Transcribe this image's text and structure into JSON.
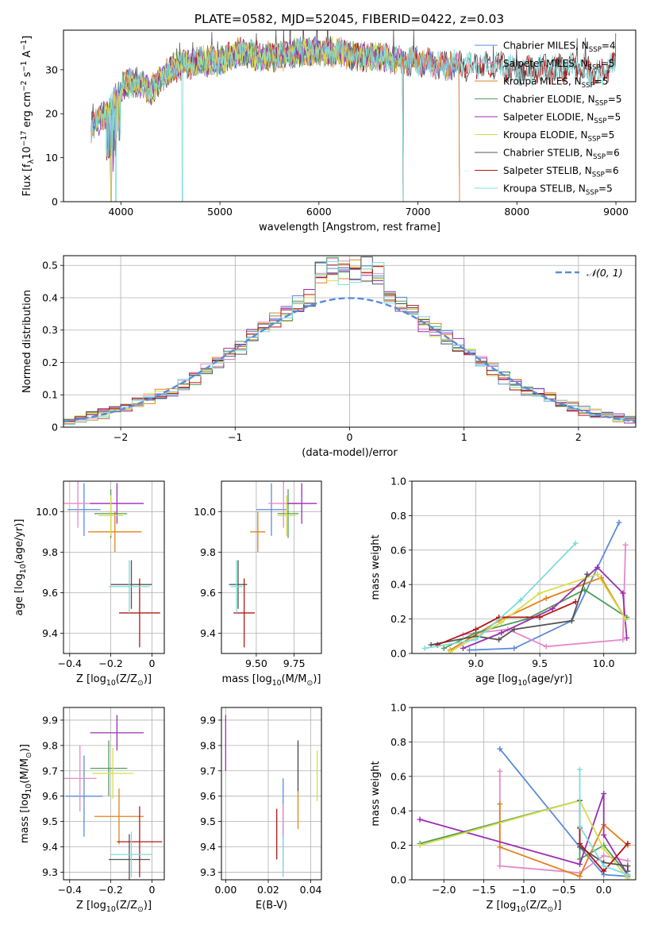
{
  "figure": {
    "title": "PLATE=0582, MJD=52045, FIBERID=0422, z=0.03"
  },
  "colors": [
    "#5b8bd9",
    "#e58ac9",
    "#e2821c",
    "#4f9d57",
    "#9b2fb0",
    "#d6dd4a",
    "#555555",
    "#b01818",
    "#7fdcdc"
  ],
  "chart_data": [
    {
      "id": "spectrum",
      "type": "line",
      "xlabel": "wavelength [Angstrom, rest frame]",
      "ylabel": "Flux [f_λ 10^-17 erg cm^-2 s^-1 A^-1]",
      "xlim": [
        3420,
        9200
      ],
      "ylim": [
        0,
        39
      ],
      "xticks": [
        4000,
        5000,
        6000,
        7000,
        8000,
        9000
      ],
      "yticks": [
        0,
        10,
        20,
        30
      ],
      "legend_position": "top-right",
      "series": [
        {
          "name": "Chabrier MILES, N_SSP=4",
          "x_range": [
            3700,
            7420
          ]
        },
        {
          "name": "Salpeter MILES, N_SSP=5",
          "x_range": [
            3700,
            7420
          ]
        },
        {
          "name": "Kroupa MILES, N_SSP=5",
          "x_range": [
            3700,
            7420
          ]
        },
        {
          "name": "Chabrier ELODIE, N_SSP=5",
          "x_range": [
            3700,
            6800
          ]
        },
        {
          "name": "Salpeter ELODIE, N_SSP=5",
          "x_range": [
            3700,
            6800
          ]
        },
        {
          "name": "Kroupa ELODIE, N_SSP=5",
          "x_range": [
            3700,
            6800
          ]
        },
        {
          "name": "Chabrier STELIB, N_SSP=6",
          "x_range": [
            3700,
            9000
          ]
        },
        {
          "name": "Salpeter STELIB, N_SSP=6",
          "x_range": [
            3700,
            9000
          ]
        },
        {
          "name": "Kroupa STELIB, N_SSP=5",
          "x_range": [
            3700,
            9000
          ]
        }
      ],
      "continuum": {
        "x": [
          3700,
          3800,
          3900,
          4000,
          4100,
          4200,
          4300,
          4400,
          4500,
          4600,
          4700,
          4800,
          4900,
          5000,
          5200,
          5400,
          5600,
          5800,
          6000,
          6200,
          6400,
          6600,
          6800,
          7000,
          7200,
          7400,
          7600,
          7800,
          8000,
          8200,
          8400,
          8600,
          8800,
          9000
        ],
        "y": [
          17,
          19,
          21,
          26,
          27,
          27,
          25,
          28,
          30,
          31,
          31,
          32,
          32,
          32,
          34,
          33,
          33,
          34,
          34,
          34,
          33,
          33,
          32,
          32,
          31,
          31,
          31,
          31,
          30,
          30,
          30,
          31,
          29,
          31
        ]
      },
      "dropouts": [
        {
          "x": 3900,
          "series": [
            3,
            4,
            5
          ]
        },
        {
          "x": 3950,
          "series": [
            8
          ]
        },
        {
          "x": 4620,
          "series": [
            8
          ]
        },
        {
          "x": 6810,
          "series": [
            3,
            4,
            5
          ]
        },
        {
          "x": 6850,
          "series": [
            6,
            7,
            8
          ]
        },
        {
          "x": 7420,
          "series": [
            0,
            1,
            2
          ]
        }
      ]
    },
    {
      "id": "residuals",
      "type": "histogram",
      "xlabel": "(data-model)/error",
      "ylabel": "Normed distribution",
      "xlim": [
        -2.5,
        2.5
      ],
      "ylim": [
        0,
        0.53
      ],
      "xticks": [
        -2,
        -1,
        0,
        1,
        2
      ],
      "yticks": [
        0.0,
        0.1,
        0.2,
        0.3,
        0.4,
        0.5
      ],
      "grid": true,
      "legend_position": "top-right",
      "reference": {
        "name": "𝒩(0, 1)",
        "mean": 0,
        "sigma": 1
      },
      "bin_width": 0.1
    },
    {
      "id": "age_vs_Z",
      "type": "errorbar",
      "xlabel": "Z [log10(Z/Z⊙)]",
      "ylabel": "age [log10(age/yr)]",
      "xlim": [
        -0.43,
        0.06
      ],
      "ylim": [
        9.3,
        10.15
      ],
      "xticks": [
        -0.4,
        -0.2,
        0.0
      ],
      "yticks": [
        9.4,
        9.6,
        9.8,
        10.0
      ],
      "grid": true,
      "points": [
        {
          "x": -0.33,
          "xerr": 0.08,
          "y": 10.01,
          "yerr": 0.13
        },
        {
          "x": -0.36,
          "xerr": 0.07,
          "y": 10.04,
          "yerr": 0.12
        },
        {
          "x": -0.18,
          "xerr": 0.13,
          "y": 9.9,
          "yerr": 0.1
        },
        {
          "x": -0.2,
          "xerr": 0.08,
          "y": 9.99,
          "yerr": 0.12
        },
        {
          "x": -0.17,
          "xerr": 0.13,
          "y": 10.04,
          "yerr": 0.1
        },
        {
          "x": -0.2,
          "xerr": 0.06,
          "y": 9.98,
          "yerr": 0.1
        },
        {
          "x": -0.1,
          "xerr": 0.1,
          "y": 9.64,
          "yerr": 0.12
        },
        {
          "x": -0.06,
          "xerr": 0.1,
          "y": 9.5,
          "yerr": 0.17
        },
        {
          "x": -0.11,
          "xerr": 0.1,
          "y": 9.63,
          "yerr": 0.13
        }
      ]
    },
    {
      "id": "age_vs_mass",
      "type": "errorbar",
      "xlabel": "mass [log10(M/M⊙)]",
      "ylabel": "",
      "xlim": [
        9.27,
        9.93
      ],
      "ylim": [
        9.3,
        10.15
      ],
      "xticks": [
        9.5,
        9.75
      ],
      "yticks": [
        9.4,
        9.6,
        9.8,
        10.0
      ],
      "grid": true,
      "points": [
        {
          "x": 9.6,
          "xerr": 0.1,
          "y": 10.01,
          "yerr": 0.13
        },
        {
          "x": 9.68,
          "xerr": 0.1,
          "y": 10.04,
          "yerr": 0.12
        },
        {
          "x": 9.51,
          "xerr": 0.05,
          "y": 9.9,
          "yerr": 0.1
        },
        {
          "x": 9.71,
          "xerr": 0.07,
          "y": 9.99,
          "yerr": 0.12
        },
        {
          "x": 9.8,
          "xerr": 0.1,
          "y": 10.04,
          "yerr": 0.1
        },
        {
          "x": 9.7,
          "xerr": 0.06,
          "y": 9.98,
          "yerr": 0.1
        },
        {
          "x": 9.38,
          "xerr": 0.06,
          "y": 9.64,
          "yerr": 0.12
        },
        {
          "x": 9.42,
          "xerr": 0.07,
          "y": 9.5,
          "yerr": 0.17
        },
        {
          "x": 9.37,
          "xerr": 0.04,
          "y": 9.63,
          "yerr": 0.13
        }
      ]
    },
    {
      "id": "weight_vs_age",
      "type": "line",
      "xlabel": "age [log10(age/yr)]",
      "ylabel": "mass weight",
      "xlim": [
        8.5,
        10.25
      ],
      "ylim": [
        0,
        1.0
      ],
      "xticks": [
        9.0,
        9.5,
        10.0
      ],
      "yticks": [
        0.0,
        0.2,
        0.4,
        0.6,
        0.8,
        1.0
      ],
      "grid": true,
      "series": [
        {
          "x": [
            8.95,
            9.3,
            9.75,
            10.12
          ],
          "y": [
            0.02,
            0.03,
            0.19,
            0.76
          ]
        },
        {
          "x": [
            8.9,
            9.25,
            9.55,
            10.15,
            10.17
          ],
          "y": [
            0.11,
            0.14,
            0.04,
            0.08,
            0.63
          ]
        },
        {
          "x": [
            8.8,
            9.18,
            9.55,
            9.98,
            10.17
          ],
          "y": [
            0.02,
            0.19,
            0.32,
            0.44,
            0.2
          ]
        },
        {
          "x": [
            8.75,
            9.0,
            9.4,
            9.85,
            10.18
          ],
          "y": [
            0.03,
            0.12,
            0.2,
            0.37,
            0.21
          ]
        },
        {
          "x": [
            8.9,
            9.2,
            9.6,
            9.95,
            10.15,
            10.18
          ],
          "y": [
            0.03,
            0.12,
            0.26,
            0.5,
            0.35,
            0.09
          ]
        },
        {
          "x": [
            8.8,
            9.2,
            9.5,
            9.95,
            10.17
          ],
          "y": [
            0.01,
            0.18,
            0.35,
            0.46,
            0.2
          ]
        },
        {
          "x": [
            8.65,
            9.0,
            9.18,
            9.3,
            9.75,
            9.87
          ],
          "y": [
            0.05,
            0.1,
            0.08,
            0.14,
            0.19,
            0.46
          ]
        },
        {
          "x": [
            8.7,
            9.0,
            9.18,
            9.5,
            9.78
          ],
          "y": [
            0.05,
            0.14,
            0.21,
            0.21,
            0.3
          ]
        },
        {
          "x": [
            8.6,
            9.0,
            9.35,
            9.78
          ],
          "y": [
            0.03,
            0.08,
            0.31,
            0.64
          ]
        }
      ]
    },
    {
      "id": "mass_vs_Z",
      "type": "errorbar",
      "xlabel": "Z [log10(Z/Z⊙)]",
      "ylabel": "mass [log10(M/M⊙)]",
      "xlim": [
        -0.43,
        0.06
      ],
      "ylim": [
        9.27,
        9.95
      ],
      "xticks": [
        -0.4,
        -0.2,
        0.0
      ],
      "yticks": [
        9.3,
        9.4,
        9.5,
        9.6,
        9.7,
        9.8,
        9.9
      ],
      "grid": true,
      "points": [
        {
          "x": -0.33,
          "xerr": 0.09,
          "y": 9.6,
          "yerr": 0.16
        },
        {
          "x": -0.35,
          "xerr": 0.08,
          "y": 9.67,
          "yerr": 0.13
        },
        {
          "x": -0.16,
          "xerr": 0.12,
          "y": 9.52,
          "yerr": 0.11
        },
        {
          "x": -0.21,
          "xerr": 0.09,
          "y": 9.71,
          "yerr": 0.11
        },
        {
          "x": -0.17,
          "xerr": 0.13,
          "y": 9.85,
          "yerr": 0.07
        },
        {
          "x": -0.19,
          "xerr": 0.1,
          "y": 9.69,
          "yerr": 0.1
        },
        {
          "x": -0.11,
          "xerr": 0.1,
          "y": 9.35,
          "yerr": 0.1
        },
        {
          "x": -0.06,
          "xerr": 0.11,
          "y": 9.42,
          "yerr": 0.14
        },
        {
          "x": -0.1,
          "xerr": 0.1,
          "y": 9.37,
          "yerr": 0.09
        }
      ]
    },
    {
      "id": "mass_vs_EBV",
      "type": "errorbar",
      "xlabel": "E(B-V)",
      "ylabel": "",
      "xlim": [
        -0.002,
        0.045
      ],
      "ylim": [
        9.27,
        9.95
      ],
      "xticks": [
        0.0,
        0.02,
        0.04
      ],
      "yticks": [
        9.3,
        9.4,
        9.5,
        9.6,
        9.7,
        9.8,
        9.9
      ],
      "grid": true,
      "points": [
        {
          "x": 0.027,
          "y": 9.5,
          "yerr": 0.17
        },
        {
          "x": 0.027,
          "y": 9.43,
          "yerr": 0.14
        },
        {
          "x": 0.034,
          "y": 9.55,
          "yerr": 0.08
        },
        {
          "x": 0.034,
          "y": 9.72,
          "yerr": 0.1
        },
        {
          "x": 0.0,
          "y": 9.81,
          "yerr": 0.11
        },
        {
          "x": 0.043,
          "y": 9.68,
          "yerr": 0.1
        },
        {
          "x": 0.034,
          "y": 9.72,
          "yerr": 0.1
        },
        {
          "x": 0.024,
          "y": 9.45,
          "yerr": 0.1
        },
        {
          "x": 0.027,
          "y": 9.36,
          "yerr": 0.08
        }
      ]
    },
    {
      "id": "weight_vs_Z",
      "type": "line",
      "xlabel": "Z [log10(Z/Z⊙)]",
      "ylabel": "mass weight",
      "xlim": [
        -2.4,
        0.4
      ],
      "ylim": [
        0,
        1.0
      ],
      "xticks": [
        -2.0,
        -1.5,
        -1.0,
        -0.5,
        0.0
      ],
      "yticks": [
        0.0,
        0.2,
        0.4,
        0.6,
        0.8,
        1.0
      ],
      "grid": true,
      "series": [
        {
          "x": [
            -1.3,
            -0.3,
            0.0,
            0.3
          ],
          "y": [
            0.76,
            0.19,
            0.03,
            0.02
          ]
        },
        {
          "x": [
            -1.3,
            -1.3,
            -0.3,
            0.0,
            0.3
          ],
          "y": [
            0.63,
            0.08,
            0.04,
            0.14,
            0.11
          ]
        },
        {
          "x": [
            -1.3,
            -1.3,
            -0.3,
            0.0,
            0.3
          ],
          "y": [
            0.44,
            0.19,
            0.02,
            0.32,
            0.2
          ]
        },
        {
          "x": [
            -2.3,
            -0.3,
            -0.3,
            0.0,
            0.3
          ],
          "y": [
            0.21,
            0.46,
            0.12,
            0.2,
            0.03
          ]
        },
        {
          "x": [
            -2.3,
            -0.3,
            0.0,
            0.0,
            0.3
          ],
          "y": [
            0.35,
            0.09,
            0.5,
            0.26,
            0.03
          ]
        },
        {
          "x": [
            -2.3,
            -0.3,
            0.0,
            0.3
          ],
          "y": [
            0.2,
            0.46,
            0.18,
            0.01
          ]
        },
        {
          "x": [
            -0.3,
            -0.3,
            0.0,
            0.3,
            0.3
          ],
          "y": [
            0.46,
            0.19,
            0.1,
            0.08,
            0.05
          ]
        },
        {
          "x": [
            -0.3,
            -0.3,
            0.0,
            0.3
          ],
          "y": [
            0.3,
            0.21,
            0.05,
            0.21
          ]
        },
        {
          "x": [
            -0.3,
            -0.3,
            0.0,
            0.3
          ],
          "y": [
            0.64,
            0.31,
            0.08,
            0.03
          ]
        }
      ]
    }
  ]
}
